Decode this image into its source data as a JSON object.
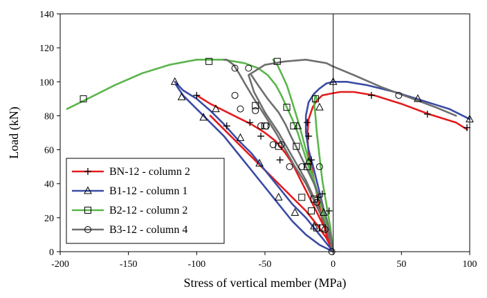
{
  "chart_data": {
    "type": "line",
    "title": "",
    "xlabel": "Stress of vertical member (MPa)",
    "ylabel": "Load (kN)",
    "xlim": [
      -200,
      100
    ],
    "ylim": [
      0,
      140
    ],
    "xticks": [
      -200,
      -150,
      -100,
      -50,
      0,
      50,
      100
    ],
    "yticks": [
      0,
      20,
      40,
      60,
      80,
      100,
      120,
      140
    ],
    "grid": false,
    "legend_position": "bottom-left",
    "series": [
      {
        "name": "BN-12 - column 2",
        "color": "#e41a1c",
        "marker": "plus",
        "branches": [
          {
            "x": [
              0,
              -2,
              -5,
              -10,
              -15,
              -20,
              -25,
              -30,
              -35,
              -42,
              -50,
              -60,
              -70,
              -80,
              -90,
              -100
            ],
            "y": [
              0,
              5,
              12,
              20,
              28,
              36,
              44,
              52,
              58,
              65,
              70,
              75,
              79,
              83,
              87,
              92
            ]
          },
          {
            "x": [
              0,
              -5,
              -9,
              -12,
              -15,
              -18,
              -19,
              -18,
              -15,
              -12,
              -8,
              -2,
              5,
              15,
              30,
              50,
              70,
              90,
              98
            ],
            "y": [
              0,
              10,
              22,
              34,
              46,
              58,
              68,
              78,
              85,
              89,
              92,
              93,
              94,
              94,
              92,
              87,
              81,
              76,
              72
            ]
          },
          {
            "x": [
              0,
              -5,
              -12,
              -20,
              -30,
              -40,
              -50,
              -60,
              -70,
              -80,
              -90
            ],
            "y": [
              0,
              8,
              16,
              24,
              32,
              40,
              48,
              56,
              64,
              72,
              80
            ]
          }
        ],
        "markers": {
          "x": [
            -100,
            -78,
            -61,
            -53,
            -39,
            -19,
            -18,
            -16,
            -11,
            -8,
            -3,
            28,
            69,
            98
          ],
          "y": [
            92,
            74,
            76,
            68,
            54,
            76,
            68,
            54,
            32,
            34,
            24,
            92,
            81,
            73
          ]
        }
      },
      {
        "name": "B1-12 - column 1",
        "color": "#3a4ba3",
        "marker": "triangle",
        "branches": [
          {
            "x": [
              0,
              -5,
              -12,
              -20,
              -30,
              -40,
              -50,
              -60,
              -70,
              -80,
              -90,
              -100,
              -110,
              -116
            ],
            "y": [
              0,
              5,
              12,
              20,
              28,
              38,
              48,
              58,
              66,
              75,
              83,
              90,
              95,
              100
            ]
          },
          {
            "x": [
              0,
              -3,
              -6,
              -10,
              -14,
              -18,
              -20,
              -20,
              -18,
              -14,
              -10,
              -5,
              0,
              10,
              25,
              45,
              65,
              85,
              100
            ],
            "y": [
              0,
              10,
              22,
              35,
              48,
              60,
              70,
              80,
              88,
              93,
              96,
              99,
              100,
              100,
              98,
              94,
              89,
              84,
              78
            ]
          },
          {
            "x": [
              0,
              -10,
              -20,
              -30,
              -40,
              -50,
              -60,
              -70,
              -80,
              -90,
              -100,
              -110,
              -115
            ],
            "y": [
              0,
              4,
              10,
              18,
              28,
              38,
              48,
              58,
              68,
              76,
              84,
              92,
              98
            ]
          }
        ],
        "markers": {
          "x": [
            -116,
            -111,
            -95,
            -86,
            -68,
            -54,
            -40,
            -14,
            -28,
            -26,
            -18,
            -10,
            -7,
            0,
            62,
            100
          ],
          "y": [
            100,
            91,
            79,
            84,
            67,
            52,
            32,
            15,
            23,
            74,
            53,
            85,
            23,
            100,
            90,
            78
          ]
        }
      },
      {
        "name": "B2-12 - column 2",
        "color": "#5ab54b",
        "marker": "square",
        "branches": [
          {
            "x": [
              0,
              -3,
              -6,
              -10,
              -14,
              -18,
              -22,
              -26,
              -30,
              -34,
              -38,
              -42,
              -48,
              -55,
              -65,
              -80,
              -100,
              -120,
              -140,
              -160,
              -180,
              -195
            ],
            "y": [
              0,
              10,
              20,
              30,
              40,
              50,
              60,
              70,
              78,
              85,
              92,
              98,
              104,
              108,
              111,
              113,
              113,
              110,
              105,
              98,
              90,
              84
            ]
          },
          {
            "x": [
              0,
              -5,
              -10,
              -15,
              -20,
              -25,
              -30,
              -34,
              -38,
              -41,
              -43,
              -44
            ],
            "y": [
              0,
              15,
              30,
              45,
              60,
              75,
              88,
              98,
              105,
              110,
              112,
              113
            ]
          },
          {
            "x": [
              0,
              -2,
              -5,
              -8,
              -10,
              -12,
              -13,
              -14,
              -13,
              -12
            ],
            "y": [
              0,
              14,
              28,
              42,
              56,
              70,
              80,
              88,
              92,
              90
            ]
          }
        ],
        "markers": {
          "x": [
            -183,
            -91,
            -41,
            -57,
            -50,
            -34,
            -29,
            -40,
            -27,
            -19,
            -23,
            -16,
            -12,
            -14,
            -13,
            -8
          ],
          "y": [
            90,
            112,
            112,
            86,
            74,
            85,
            74,
            62,
            62,
            50,
            32,
            24,
            14,
            31,
            90,
            14
          ]
        }
      },
      {
        "name": "B3-12 - column 4",
        "color": "#6e6e6e",
        "marker": "circle",
        "branches": [
          {
            "x": [
              0,
              -3,
              -8,
              -14,
              -20,
              -28,
              -35,
              -42,
              -50,
              -58,
              -64,
              -69,
              -73,
              -78,
              -80
            ],
            "y": [
              0,
              10,
              20,
              30,
              40,
              50,
              60,
              70,
              80,
              90,
              98,
              105,
              110,
              113,
              113
            ]
          },
          {
            "x": [
              0,
              -2,
              -5,
              -9,
              -14,
              -20,
              -26,
              -31,
              -35,
              -40,
              -48,
              -55,
              -60
            ],
            "y": [
              0,
              10,
              20,
              30,
              40,
              50,
              60,
              68,
              75,
              82,
              90,
              98,
              104
            ]
          },
          {
            "x": [
              0,
              -5,
              -12,
              -20,
              -30,
              -40,
              -50,
              -58,
              -62,
              -50,
              -35,
              -20,
              -5,
              0,
              15,
              35,
              55,
              75,
              90
            ],
            "y": [
              0,
              14,
              28,
              42,
              56,
              70,
              82,
              94,
              104,
              110,
              112,
              113,
              111,
              109,
              104,
              97,
              91,
              85,
              80
            ]
          }
        ],
        "markers": {
          "x": [
            -72,
            -62,
            -72,
            -68,
            -57,
            -53,
            -49,
            -44,
            -38,
            -32,
            -23,
            -12,
            -10,
            -6,
            -1,
            48
          ],
          "y": [
            108,
            108,
            92,
            84,
            83,
            74,
            74,
            63,
            63,
            50,
            50,
            29,
            50,
            13,
            0,
            92
          ]
        }
      }
    ]
  }
}
